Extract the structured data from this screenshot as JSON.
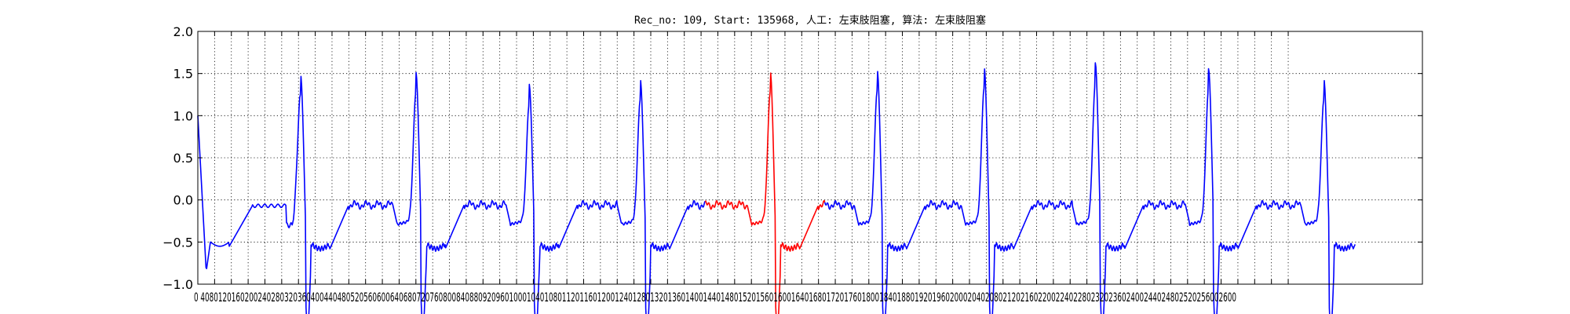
{
  "chart_data": {
    "type": "line",
    "title": "Rec_no: 109, Start: 135968, 人工: 左束肢阻塞, 算法: 左束肢阻塞",
    "xlabel": "",
    "ylabel": "",
    "xlim": [
      0,
      2920
    ],
    "ylim": [
      -1.0,
      2.0
    ],
    "grid": true,
    "y_ticks": [
      -1.0,
      -0.5,
      0.0,
      0.5,
      1.0,
      1.5,
      2.0
    ],
    "y_tick_labels": [
      "−1.0",
      "−0.5",
      "0.0",
      "0.5",
      "1.0",
      "1.5",
      "2.0"
    ],
    "x_ticks": [
      0,
      40,
      80,
      120,
      160,
      200,
      240,
      280,
      320,
      360,
      400,
      440,
      480,
      520,
      560,
      600,
      640,
      680,
      720,
      760,
      800,
      840,
      880,
      920,
      960,
      1000,
      1040,
      1080,
      1120,
      1160,
      1200,
      1240,
      1280,
      1320,
      1360,
      1400,
      1440,
      1480,
      1520,
      1560,
      1600,
      1640,
      1680,
      1720,
      1760,
      1800,
      1840,
      1880,
      1920,
      1960,
      2000,
      2040,
      2080,
      2120,
      2160,
      2200,
      2240,
      2280,
      2320,
      2360,
      2400,
      2440,
      2480,
      2520,
      2560,
      2600
    ],
    "x_tick_labels_text": "0 4080120160200240280320360400440480520560600640680720760800840880920960100010401080112011601200124012801320136014001440148015201560160016401680172017601800184018801920196020002040208021202160220022402280232023602400244024802520256002600",
    "beat_peaks_x": [
      245,
      520,
      790,
      1055,
      1365,
      1620,
      1875,
      2140,
      2410,
      2685
    ],
    "beat_peaks_y": [
      1.49,
      1.52,
      1.38,
      1.44,
      1.53,
      1.55,
      1.58,
      1.63,
      1.56,
      1.44
    ],
    "series": [
      {
        "name": "",
        "color": "#0000ff",
        "x_range": [
          0,
          1210
        ]
      },
      {
        "name": "",
        "color": "#ff0000",
        "x_range": [
          1210,
          1495
        ]
      },
      {
        "name": "",
        "color": "#0000ff",
        "x_range": [
          1495,
          2760
        ]
      }
    ],
    "signal_end_x": 2760
  }
}
